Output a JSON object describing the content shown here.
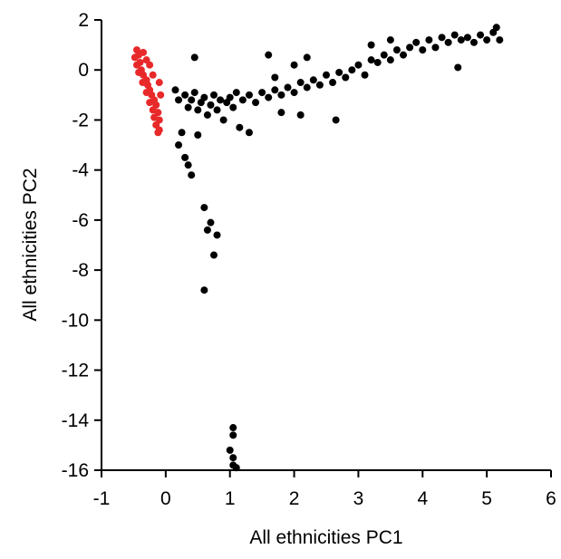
{
  "chart_data": {
    "type": "scatter",
    "xlabel": "All ethnicities PC1",
    "ylabel": "All ethnicities PC2",
    "xlim": [
      -1,
      6
    ],
    "xticks": [
      -1,
      0,
      1,
      2,
      3,
      4,
      5,
      6
    ],
    "ylim": [
      -16,
      2
    ],
    "yticks": [
      -16,
      -14,
      -12,
      -10,
      -8,
      -6,
      -4,
      -2,
      0,
      2
    ],
    "series": [
      {
        "color": "#000000",
        "x": [
          0.15,
          0.2,
          0.3,
          0.35,
          0.4,
          0.45,
          0.5,
          0.55,
          0.6,
          0.65,
          0.7,
          0.75,
          0.8,
          0.85,
          0.9,
          0.95,
          1.0,
          1.05,
          1.1,
          1.15,
          1.2,
          1.3,
          1.4,
          1.5,
          1.6,
          1.7,
          1.8,
          1.9,
          2.0,
          2.1,
          2.2,
          2.3,
          2.4,
          2.5,
          2.6,
          2.7,
          2.8,
          2.9,
          3.0,
          3.1,
          3.2,
          3.3,
          3.4,
          3.5,
          3.6,
          3.7,
          3.8,
          3.9,
          4.0,
          4.1,
          4.2,
          4.3,
          4.4,
          4.5,
          4.6,
          4.7,
          4.8,
          4.9,
          5.0,
          5.1,
          5.2,
          5.15,
          4.55,
          3.2,
          3.5,
          2.2,
          1.6,
          2.0,
          1.7,
          2.65,
          2.1,
          1.8,
          0.2,
          0.3,
          0.35,
          0.4,
          0.25,
          0.45,
          0.6,
          0.7,
          0.65,
          0.8,
          0.75,
          0.6,
          1.05,
          1.05,
          1.0,
          1.05,
          1.05,
          1.1,
          1.3,
          0.5
        ],
        "values": [
          -0.8,
          -1.2,
          -1.0,
          -1.5,
          -1.2,
          -0.9,
          -1.6,
          -1.3,
          -1.1,
          -1.8,
          -1.4,
          -1.0,
          -1.6,
          -1.2,
          -2.0,
          -1.3,
          -1.1,
          -1.5,
          -0.9,
          -2.3,
          -1.2,
          -1.0,
          -1.3,
          -0.9,
          -1.1,
          -0.8,
          -1.0,
          -0.7,
          -0.9,
          -0.5,
          -0.7,
          -0.4,
          -0.6,
          -0.2,
          -0.5,
          -0.1,
          -0.3,
          0.0,
          0.2,
          -0.2,
          0.4,
          0.3,
          0.6,
          0.4,
          0.8,
          0.6,
          0.9,
          1.1,
          0.8,
          1.2,
          0.9,
          1.3,
          1.1,
          1.4,
          1.2,
          1.3,
          1.1,
          1.4,
          1.2,
          1.5,
          1.2,
          1.7,
          0.1,
          1.0,
          1.2,
          0.5,
          0.6,
          0.2,
          -0.3,
          -2.0,
          -1.8,
          -1.7,
          -3.0,
          -3.5,
          -3.8,
          -4.2,
          -2.5,
          0.5,
          -5.5,
          -6.1,
          -6.4,
          -6.6,
          -7.4,
          -8.8,
          -14.3,
          -14.6,
          -15.2,
          -15.5,
          -15.8,
          -15.9,
          -2.5,
          -2.6
        ]
      },
      {
        "color": "#e8292a",
        "x": [
          -0.45,
          -0.42,
          -0.48,
          -0.4,
          -0.45,
          -0.38,
          -0.42,
          -0.35,
          -0.3,
          -0.36,
          -0.28,
          -0.25,
          -0.3,
          -0.22,
          -0.18,
          -0.25,
          -0.15,
          -0.2,
          -0.12,
          -0.18,
          -0.1,
          -0.15,
          -0.1,
          -0.12,
          -0.3,
          -0.25,
          -0.2,
          -0.08,
          -0.1,
          -0.35
        ],
        "values": [
          0.8,
          0.6,
          0.5,
          0.3,
          0.2,
          0.0,
          -0.1,
          -0.2,
          -0.4,
          -0.5,
          -0.6,
          -0.8,
          -0.9,
          -1.0,
          -1.2,
          -1.3,
          -1.4,
          -1.6,
          -1.7,
          -1.9,
          -2.0,
          -2.2,
          -2.4,
          -2.5,
          0.4,
          0.2,
          -0.2,
          -1.0,
          -0.5,
          0.7
        ]
      }
    ]
  }
}
